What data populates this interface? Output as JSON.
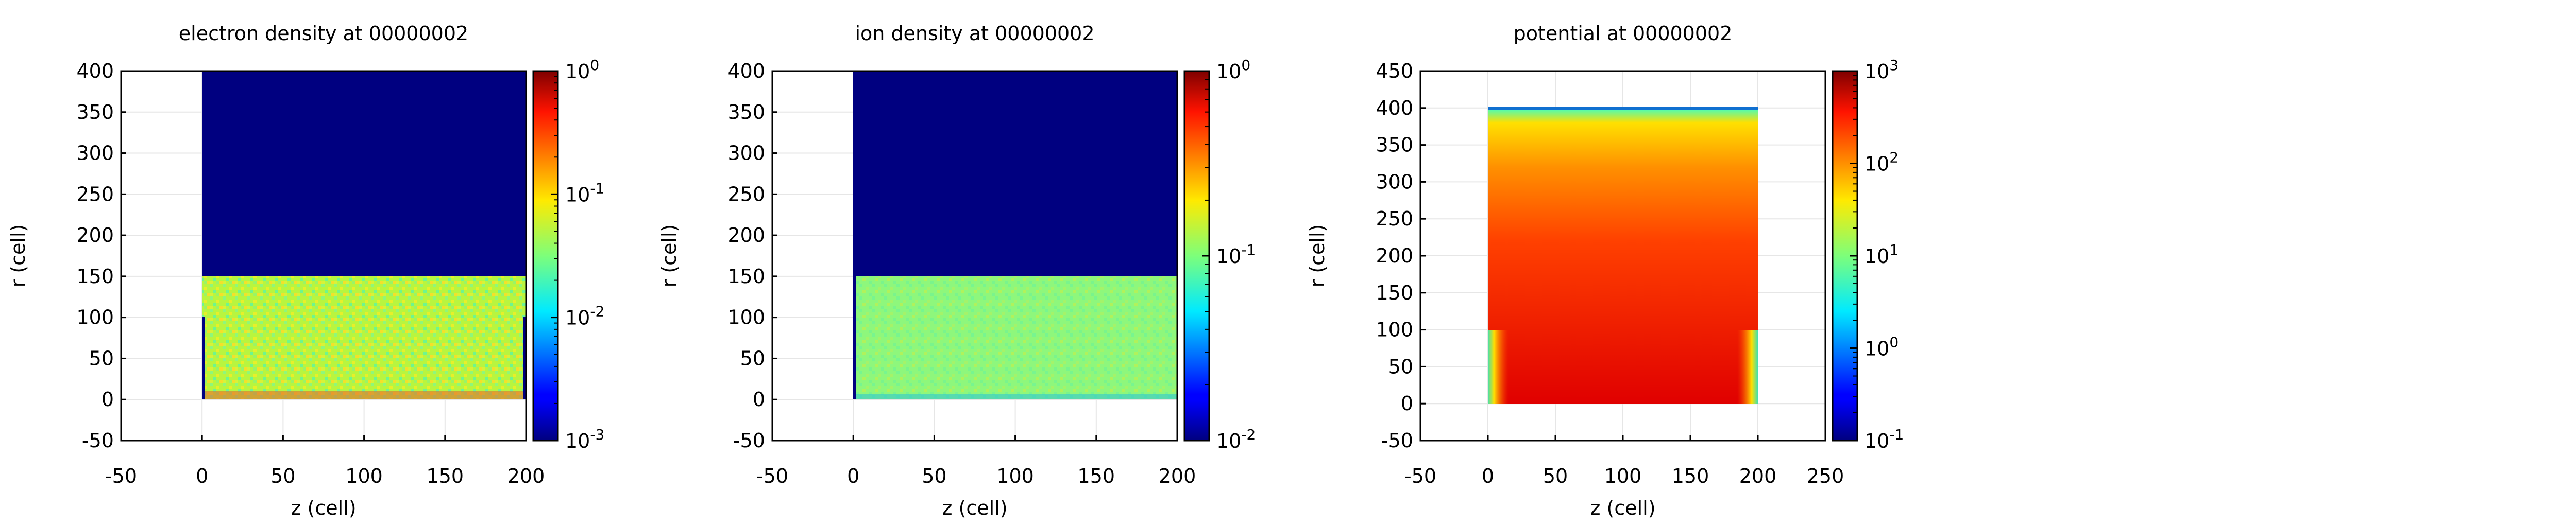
{
  "chart_data": [
    {
      "type": "heatmap",
      "title": "electron density at 00000002",
      "xlabel": "z (cell)",
      "ylabel": "r (cell)",
      "xlim": [
        -50,
        200
      ],
      "ylim": [
        -50,
        400
      ],
      "xticks": [
        "-50",
        "0",
        "50",
        "100",
        "150",
        "200"
      ],
      "yticks": [
        "-50",
        "0",
        "50",
        "100",
        "150",
        "200",
        "250",
        "300",
        "350",
        "400"
      ],
      "colorbar": {
        "scale": "log",
        "range": [
          0.001,
          1
        ],
        "ticks": [
          "10-3",
          "10-2",
          "10-1",
          "100"
        ]
      },
      "regions": [
        {
          "z": [
            0,
            200
          ],
          "r": [
            150,
            400
          ],
          "value": 0.001,
          "desc": "low density (dark blue)"
        },
        {
          "z": [
            0,
            200
          ],
          "r": [
            0,
            150
          ],
          "value": 0.05,
          "desc": "noisy plasma (green-yellow)"
        }
      ],
      "grid": true
    },
    {
      "type": "heatmap",
      "title": "ion density at 00000002",
      "xlabel": "z (cell)",
      "ylabel": "r (cell)",
      "xlim": [
        -50,
        200
      ],
      "ylim": [
        -50,
        400
      ],
      "xticks": [
        "-50",
        "0",
        "50",
        "100",
        "150",
        "200"
      ],
      "yticks": [
        "-50",
        "0",
        "50",
        "100",
        "150",
        "200",
        "250",
        "300",
        "350",
        "400"
      ],
      "colorbar": {
        "scale": "log",
        "range": [
          0.01,
          1
        ],
        "ticks": [
          "10-2",
          "10-1",
          "100"
        ]
      },
      "regions": [
        {
          "z": [
            0,
            200
          ],
          "r": [
            150,
            400
          ],
          "value": 0.01,
          "desc": "low density (dark blue)"
        },
        {
          "z": [
            0,
            200
          ],
          "r": [
            0,
            150
          ],
          "value": 0.15,
          "desc": "noisy plasma (light green)"
        }
      ],
      "grid": true
    },
    {
      "type": "heatmap",
      "title": "potential at 00000002",
      "xlabel": "z (cell)",
      "ylabel": "r (cell)",
      "xlim": [
        -50,
        250
      ],
      "ylim": [
        -50,
        450
      ],
      "xticks": [
        "-50",
        "0",
        "50",
        "100",
        "150",
        "200",
        "250"
      ],
      "yticks": [
        "-50",
        "0",
        "50",
        "100",
        "150",
        "200",
        "250",
        "300",
        "350",
        "400",
        "450"
      ],
      "colorbar": {
        "scale": "log",
        "range": [
          0.1,
          1000
        ],
        "ticks": [
          "10-1",
          "100",
          "101",
          "102",
          "103"
        ]
      },
      "regions": [
        {
          "z": [
            0,
            200
          ],
          "r": [
            0,
            400
          ],
          "value": 200,
          "desc": "potential, red near bottom, yellow near top"
        }
      ],
      "grid": true
    }
  ]
}
